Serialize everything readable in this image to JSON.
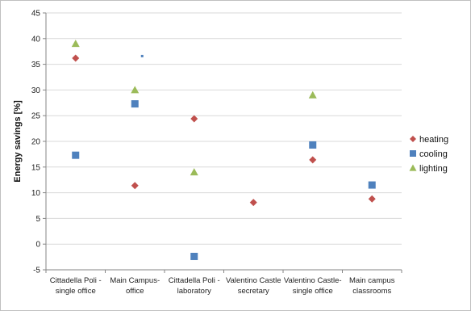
{
  "chart_data": {
    "type": "scatter",
    "categories": [
      "Cittadella Poli - single office",
      "Main Campus- office",
      "Cittadella Poli - laboratory",
      "Valentino Castle secretary",
      "Valentino Castle- single office",
      "Main campus classrooms"
    ],
    "category_label_lines": [
      [
        "Cittadella Poli -",
        "single office"
      ],
      [
        "Main Campus-",
        "office"
      ],
      [
        "Cittadella Poli -",
        "laboratory"
      ],
      [
        "Valentino Castle",
        "secretary"
      ],
      [
        "Valentino Castle-",
        "single office"
      ],
      [
        "Main campus",
        "classrooms"
      ]
    ],
    "series": [
      {
        "name": "heating",
        "marker": "diamond",
        "color": "#c0504d",
        "values": [
          36.2,
          11.4,
          24.4,
          8.1,
          16.4,
          8.8
        ]
      },
      {
        "name": "cooling",
        "marker": "square",
        "color": "#4f81bd",
        "values": [
          17.3,
          27.3,
          -2.4,
          null,
          19.3,
          11.5
        ]
      },
      {
        "name": "lighting",
        "marker": "triangle",
        "color": "#9bbb59",
        "values": [
          39.0,
          30.0,
          14.0,
          null,
          29.0,
          null
        ]
      }
    ],
    "extra_points": [
      {
        "category_index": 1,
        "value": 36.6,
        "color": "#4f81bd",
        "note": "small marker"
      }
    ],
    "title": "",
    "xlabel": "",
    "ylabel": "Energy savings [%]",
    "ylim": [
      -5,
      45
    ],
    "yticks": [
      -5,
      0,
      5,
      10,
      15,
      20,
      25,
      30,
      35,
      40,
      45
    ],
    "grid": true,
    "legend_position": "right"
  }
}
